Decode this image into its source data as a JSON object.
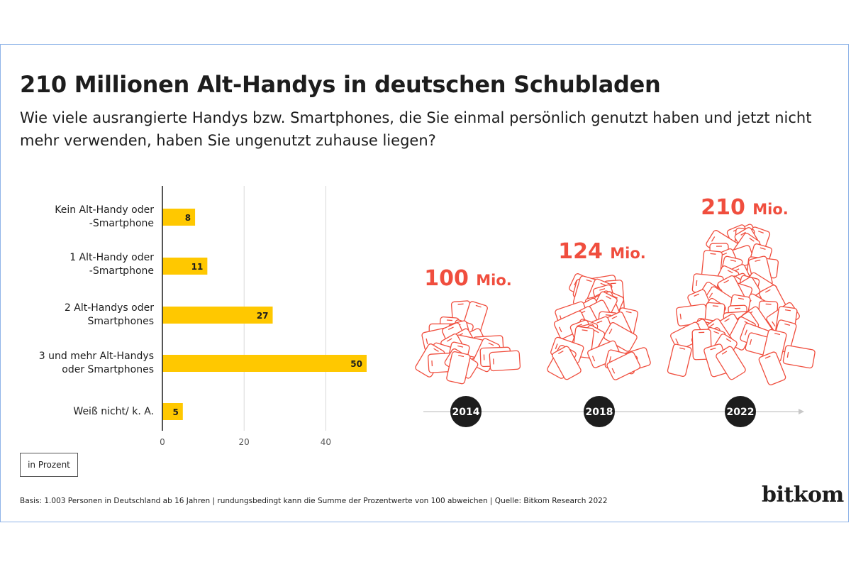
{
  "title": "210 Millionen Alt-Handys in deutschen Schubladen",
  "subtitle": "Wie viele ausrangierte Handys bzw. Smartphones, die Sie einmal persönlich genutzt haben und jetzt nicht mehr verwenden, haben Sie ungenutzt zuhause liegen?",
  "chart_data": [
    {
      "type": "bar",
      "orientation": "horizontal",
      "categories": [
        [
          "Kein Alt-Handy oder",
          "-Smartphone"
        ],
        [
          "1 Alt-Handy oder",
          "-Smartphone"
        ],
        [
          "2 Alt-Handys oder",
          "Smartphones"
        ],
        [
          "3 und mehr Alt-Handys",
          "oder Smartphones"
        ],
        [
          "Weiß nicht/ k. A."
        ]
      ],
      "values": [
        8,
        11,
        27,
        50,
        5
      ],
      "xlim": [
        0,
        50
      ],
      "xticks": [
        0,
        20,
        40
      ],
      "unit": "in Prozent",
      "grid": true,
      "bar_color": "#ffc800"
    },
    {
      "type": "timeline",
      "points": [
        {
          "year": "2014",
          "value": 100,
          "label": "100 Mio."
        },
        {
          "year": "2018",
          "value": 124,
          "label": "124 Mio."
        },
        {
          "year": "2022",
          "value": 210,
          "label": "210 Mio."
        }
      ],
      "accent_color": "#f04e3e"
    }
  ],
  "footnote": "Basis: 1.003 Personen in Deutschland ab 16 Jahren | rundungsbedingt kann die Summe der Prozentwerte von 100 abweichen | Quelle: Bitkom Research 2022",
  "unit_label": "in Prozent",
  "brand": "bitkom",
  "colors": {
    "bar": "#ffc800",
    "accent": "#f04e3e",
    "dark": "#1d1d1d",
    "frame": "#8fb4e8"
  }
}
